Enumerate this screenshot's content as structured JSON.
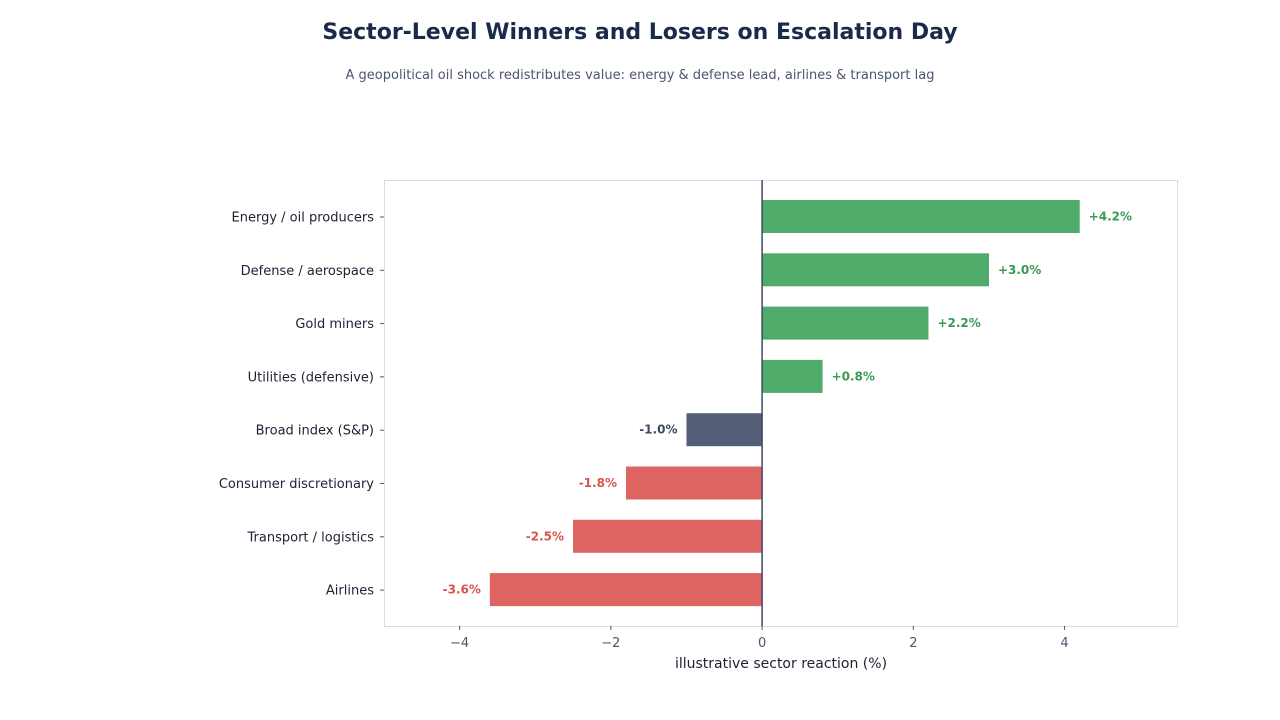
{
  "chart_data": {
    "type": "bar",
    "orientation": "horizontal",
    "title": "Sector-Level Winners and Losers on Escalation Day",
    "subtitle": "A geopolitical oil shock redistributes value: energy & defense lead, airlines & transport lag",
    "xlabel": "illustrative sector reaction (%)",
    "ylabel": "",
    "xlim": [
      -5,
      5.5
    ],
    "xticks": [
      -4,
      -2,
      0,
      2,
      4
    ],
    "xtick_labels": [
      "−4",
      "−2",
      "0",
      "2",
      "4"
    ],
    "grid": false,
    "categories": [
      "Energy / oil producers",
      "Defense / aerospace",
      "Gold miners",
      "Utilities (defensive)",
      "Broad index (S&P)",
      "Consumer discretionary",
      "Transport / logistics",
      "Airlines"
    ],
    "values": [
      4.2,
      3.0,
      2.2,
      0.8,
      -1.0,
      -1.8,
      -2.5,
      -3.6
    ],
    "data_labels": [
      "+4.2%",
      "+3.0%",
      "+2.2%",
      "+0.8%",
      "-1.0%",
      "-1.8%",
      "-2.5%",
      "-3.6%"
    ],
    "colors": {
      "positive": "#4fab6a",
      "negative": "#dd6461",
      "index": "#555f78",
      "positive_text": "#3a9a55",
      "negative_text": "#d9534f",
      "index_text": "#3d4a66",
      "zero_line": "#3d4a66"
    },
    "index_category": "Broad index (S&P)"
  }
}
